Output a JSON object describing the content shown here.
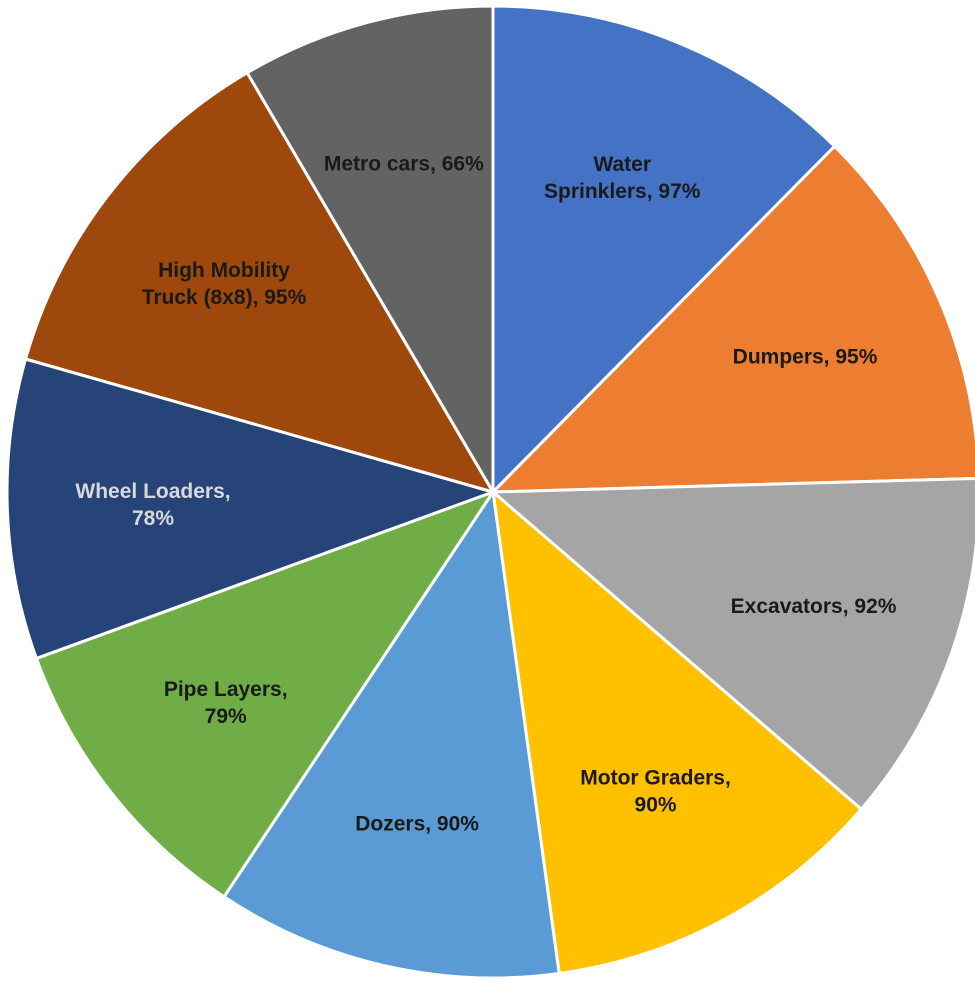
{
  "chart_data": {
    "type": "pie",
    "slices": [
      {
        "lines": [
          "Water",
          "Sprinklers, 97%"
        ],
        "category": "Water Sprinklers",
        "value": 97,
        "color": "#4472C4",
        "label_color": "#1a1a1a"
      },
      {
        "lines": [
          "Dumpers, 95%"
        ],
        "category": "Dumpers",
        "value": 95,
        "color": "#ED7D31",
        "label_color": "#1a1a1a"
      },
      {
        "lines": [
          "Excavators, 92%"
        ],
        "category": "Excavators",
        "value": 92,
        "color": "#A5A5A5",
        "label_color": "#1a1a1a"
      },
      {
        "lines": [
          "Motor Graders,",
          "90%"
        ],
        "category": "Motor Graders",
        "value": 90,
        "color": "#FFC000",
        "label_color": "#1a1a1a"
      },
      {
        "lines": [
          "Dozers, 90%"
        ],
        "category": "Dozers",
        "value": 90,
        "color": "#5B9BD5",
        "label_color": "#1a1a1a"
      },
      {
        "lines": [
          "Pipe Layers,",
          "79%"
        ],
        "category": "Pipe Layers",
        "value": 79,
        "color": "#70AD47",
        "label_color": "#1a1a1a"
      },
      {
        "lines": [
          "Wheel Loaders,",
          "78%"
        ],
        "category": "Wheel Loaders",
        "value": 78,
        "color": "#264478",
        "label_color": "#d9d9d9"
      },
      {
        "lines": [
          "High Mobility",
          "Truck (8x8), 95%"
        ],
        "category": "High Mobility Truck (8x8)",
        "value": 95,
        "color": "#9E480E",
        "label_color": "#1a1a1a"
      },
      {
        "lines": [
          "Metro cars, 66%"
        ],
        "category": "Metro cars",
        "value": 66,
        "color": "#636363",
        "label_color": "#1a1a1a"
      }
    ]
  }
}
